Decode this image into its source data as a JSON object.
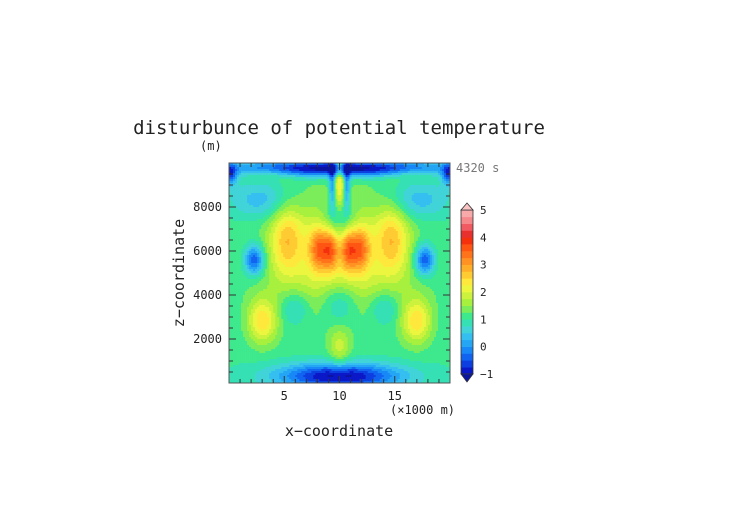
{
  "chart_data": {
    "type": "heatmap",
    "title": "disturbunce of potential temperature",
    "xlabel": "x−coordinate",
    "ylabel": "z−coordinate",
    "x_unit": "(×1000 m)",
    "y_unit": "(m)",
    "time_label": "4320 s",
    "xlim": [
      0,
      20
    ],
    "ylim": [
      0,
      10000
    ],
    "x_ticks": [
      5,
      10,
      15
    ],
    "x_tick_labels": [
      "5",
      "10",
      "15"
    ],
    "y_ticks": [
      2000,
      4000,
      6000,
      8000
    ],
    "y_tick_labels": [
      "2000",
      "4000",
      "6000",
      "8000"
    ],
    "colorbar": {
      "range": [
        -1,
        5
      ],
      "step": 0.25,
      "tick_values": [
        -1,
        0,
        1,
        2,
        3,
        4,
        5
      ],
      "tick_labels": [
        "−1",
        "0",
        "1",
        "2",
        "3",
        "4",
        "5"
      ],
      "colors": [
        "#0a18c8",
        "#0c3ee0",
        "#1164f0",
        "#1888f6",
        "#24a6f5",
        "#35bff0",
        "#40d4d8",
        "#34e0b4",
        "#3ee98e",
        "#7ced5a",
        "#a8f03e",
        "#ccf23e",
        "#ecf63e",
        "#ffe83c",
        "#ffcb32",
        "#ffae2a",
        "#ff9222",
        "#ff741a",
        "#ff5512",
        "#f5300d",
        "#e8302f",
        "#f05a60",
        "#f5888b",
        "#f8aaab"
      ],
      "under_color": "#0a14a0",
      "over_color": "#fbc4c4"
    }
  }
}
